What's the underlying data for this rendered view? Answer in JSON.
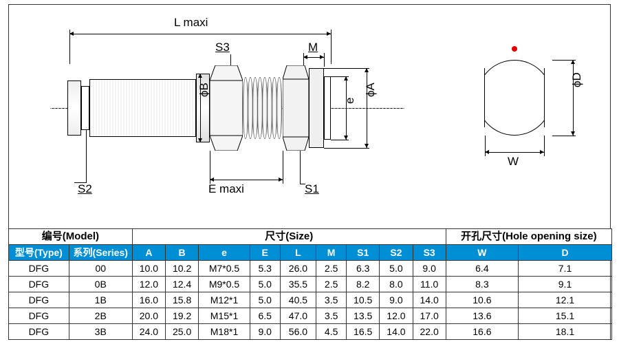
{
  "diagram": {
    "labels": {
      "L_maxi": "L maxi",
      "E_maxi": "E maxi",
      "M": "M",
      "S1": "S1",
      "S2": "S2",
      "S3": "S3",
      "phiA": "ϕA",
      "phiB": "ϕB",
      "phiD": "ϕD",
      "e": "e",
      "W": "W"
    },
    "red_dot_color": "#e60000"
  },
  "table": {
    "group_headers": {
      "model": "编号(Model)",
      "size": "尺寸(Size)",
      "hole": "开孔尺寸(Hole opening size)"
    },
    "col_headers": {
      "type": "型号(Type)",
      "series": "系列(Series)",
      "A": "A",
      "B": "B",
      "e": "e",
      "E": "E",
      "L": "L",
      "M": "M",
      "S1": "S1",
      "S2": "S2",
      "S3": "S3",
      "W": "W",
      "D": "D"
    },
    "colors": {
      "header_bg": "#008fd5",
      "header_fg": "#ffffff",
      "border": "#333333",
      "row_bg": "#ffffff"
    },
    "col_widths_pct": [
      10,
      10.5,
      5.5,
      5.5,
      8.5,
      5,
      6,
      5,
      5.5,
      5.5,
      5.5,
      12,
      15.5
    ],
    "rows": [
      {
        "type": "DFG",
        "series": "00",
        "A": "10.0",
        "B": "10.2",
        "e": "M7*0.5",
        "E": "5.3",
        "L": "26.0",
        "M": "2.5",
        "S1": "6.3",
        "S2": "5.0",
        "S3": "9.0",
        "W": "6.4",
        "D": "7.1"
      },
      {
        "type": "DFG",
        "series": "0B",
        "A": "12.0",
        "B": "12.4",
        "e": "M9*0.5",
        "E": "5.0",
        "L": "35.5",
        "M": "2.5",
        "S1": "8.2",
        "S2": "8.0",
        "S3": "11.0",
        "W": "8.3",
        "D": "9.1"
      },
      {
        "type": "DFG",
        "series": "1B",
        "A": "16.0",
        "B": "15.8",
        "e": "M12*1",
        "E": "5.0",
        "L": "40.5",
        "M": "3.5",
        "S1": "10.5",
        "S2": "9.0",
        "S3": "14.0",
        "W": "10.6",
        "D": "12.1"
      },
      {
        "type": "DFG",
        "series": "2B",
        "A": "20.0",
        "B": "19.2",
        "e": "M15*1",
        "E": "6.5",
        "L": "47.0",
        "M": "3.5",
        "S1": "13.5",
        "S2": "12.0",
        "S3": "17.0",
        "W": "13.6",
        "D": "15.1"
      },
      {
        "type": "DFG",
        "series": "3B",
        "A": "24.0",
        "B": "25.0",
        "e": "M18*1",
        "E": "9.0",
        "L": "56.0",
        "M": "4.5",
        "S1": "16.5",
        "S2": "14.0",
        "S3": "22.0",
        "W": "16.6",
        "D": "18.1"
      }
    ]
  }
}
